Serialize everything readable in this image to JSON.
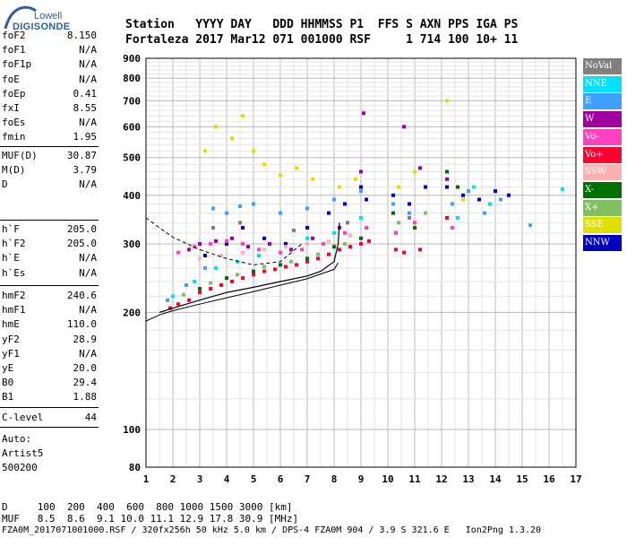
{
  "logo": {
    "top": "Lowell",
    "bottom": "DIGISONDE"
  },
  "header": {
    "line1": "Station   YYYY DAY   DDD HHMMSS P1  FFS S AXN PPS IGA PS",
    "line2": "Fortaleza 2017 Mar12 071 001000 RSF     1 714 100 10+ 11"
  },
  "params": {
    "group1": [
      {
        "name": "foF2",
        "value": "8.150"
      },
      {
        "name": "foF1",
        "value": "N/A"
      },
      {
        "name": "foF1p",
        "value": "N/A"
      },
      {
        "name": "foE",
        "value": "N/A"
      },
      {
        "name": "foEp",
        "value": "0.41"
      },
      {
        "name": "fxI",
        "value": "8.55"
      },
      {
        "name": "foEs",
        "value": "N/A"
      },
      {
        "name": "fmin",
        "value": "1.95"
      }
    ],
    "group2": [
      {
        "name": "MUF(D)",
        "value": "30.87"
      },
      {
        "name": "M(D)",
        "value": "3.79"
      },
      {
        "name": "D",
        "value": "N/A"
      }
    ],
    "group3": [
      {
        "name": "h`F",
        "value": "205.0"
      },
      {
        "name": "h`F2",
        "value": "205.0"
      },
      {
        "name": "h`E",
        "value": "N/A"
      },
      {
        "name": "h`Es",
        "value": "N/A"
      }
    ],
    "group4": [
      {
        "name": "hmF2",
        "value": "240.6"
      },
      {
        "name": "hmF1",
        "value": "N/A"
      },
      {
        "name": "hmE",
        "value": "110.0"
      },
      {
        "name": "yF2",
        "value": "28.9"
      },
      {
        "name": "yF1",
        "value": "N/A"
      },
      {
        "name": "yE",
        "value": "20.0"
      },
      {
        "name": "B0",
        "value": "29.4"
      },
      {
        "name": "B1",
        "value": "1.88"
      }
    ],
    "clevel": {
      "name": "C-level",
      "value": "44"
    }
  },
  "auto": {
    "line1": "Auto:",
    "line2": "Artist5",
    "line3": "500200"
  },
  "legend": [
    {
      "label": "NoVal",
      "color": "#808080"
    },
    {
      "label": "NNE",
      "color": "#00e0ff"
    },
    {
      "label": "E",
      "color": "#40a0ff"
    },
    {
      "label": "W",
      "color": "#a000a0"
    },
    {
      "label": "Vo-",
      "color": "#ff40c0"
    },
    {
      "label": "Vo+",
      "color": "#ff0030"
    },
    {
      "label": "SSW",
      "color": "#ffb0b0"
    },
    {
      "label": "X-",
      "color": "#007000"
    },
    {
      "label": "X+",
      "color": "#80c060"
    },
    {
      "label": "SSE",
      "color": "#e0e000"
    },
    {
      "label": "NNW",
      "color": "#0000c0"
    }
  ],
  "footer": {
    "d_row": "D     100  200  400  600  800 1000 1500 3000 [km]",
    "muf_row": "MUF   8.5  8.6  9.1 10.0 11.1 12.9 17.8 30.9 [MHz]",
    "info_row": "FZA0M_2017071001000.RSF / 320fx256h 50 kHz 5.0 km / DPS-4 FZA0M 904 / 3.9 S 321.6 E   Ion2Png 1.3.20"
  },
  "chart_data": {
    "type": "scatter",
    "title": "",
    "xlabel": "",
    "ylabel": "",
    "xlim": [
      1,
      17
    ],
    "ylim": [
      80,
      900
    ],
    "y_scale": "log",
    "x_ticks": [
      "1",
      "2",
      "3",
      "4",
      "5",
      "6",
      "7",
      "8",
      "9",
      "10",
      "11",
      "12",
      "13",
      "14",
      "15",
      "16",
      "17"
    ],
    "y_ticks": [
      "80",
      "100",
      "200",
      "300",
      "400",
      "500",
      "600",
      "700",
      "800",
      "900"
    ],
    "grid": true,
    "legend_position": "right",
    "series": [
      {
        "name": "Vo+",
        "color": "#ff0030",
        "points": [
          [
            1.9,
            205
          ],
          [
            2.2,
            210
          ],
          [
            2.6,
            215
          ],
          [
            3.0,
            225
          ],
          [
            3.4,
            230
          ],
          [
            3.8,
            235
          ],
          [
            4.2,
            240
          ],
          [
            4.6,
            245
          ],
          [
            5.0,
            250
          ],
          [
            5.4,
            255
          ],
          [
            5.8,
            258
          ],
          [
            6.2,
            262
          ],
          [
            6.6,
            265
          ],
          [
            7.0,
            270
          ],
          [
            7.4,
            275
          ],
          [
            7.8,
            282
          ],
          [
            8.2,
            290
          ],
          [
            8.6,
            295
          ],
          [
            9.0,
            300
          ],
          [
            9.3,
            305
          ],
          [
            10.3,
            290
          ],
          [
            10.6,
            285
          ],
          [
            11.2,
            290
          ],
          [
            12.2,
            350
          ]
        ]
      },
      {
        "name": "NNW",
        "color": "#0000c0",
        "points": [
          [
            3.2,
            280
          ],
          [
            4.0,
            300
          ],
          [
            4.6,
            330
          ],
          [
            5.4,
            310
          ],
          [
            6.2,
            300
          ],
          [
            7.0,
            330
          ],
          [
            7.8,
            360
          ],
          [
            8.4,
            380
          ],
          [
            9.0,
            420
          ],
          [
            9.2,
            390
          ],
          [
            10.2,
            400
          ],
          [
            10.8,
            380
          ],
          [
            11.4,
            420
          ],
          [
            12.2,
            420
          ],
          [
            12.8,
            400
          ],
          [
            13.4,
            390
          ],
          [
            14.0,
            410
          ],
          [
            14.5,
            400
          ]
        ]
      },
      {
        "name": "E",
        "color": "#40a0ff",
        "points": [
          [
            1.8,
            215
          ],
          [
            2.5,
            235
          ],
          [
            3.2,
            260
          ],
          [
            3.5,
            370
          ],
          [
            4.0,
            360
          ],
          [
            4.5,
            375
          ],
          [
            5.0,
            380
          ],
          [
            6.0,
            360
          ],
          [
            7.0,
            370
          ],
          [
            8.0,
            390
          ],
          [
            9.0,
            410
          ],
          [
            10.2,
            380
          ],
          [
            10.8,
            360
          ],
          [
            12.4,
            380
          ],
          [
            13.0,
            410
          ],
          [
            13.6,
            360
          ],
          [
            14.2,
            390
          ],
          [
            15.3,
            335
          ]
        ]
      },
      {
        "name": "NNE",
        "color": "#00e0ff",
        "points": [
          [
            2.0,
            220
          ],
          [
            2.8,
            240
          ],
          [
            3.6,
            260
          ],
          [
            4.4,
            270
          ],
          [
            5.2,
            280
          ],
          [
            6.0,
            285
          ],
          [
            7.0,
            310
          ],
          [
            8.0,
            320
          ],
          [
            9.0,
            350
          ],
          [
            10.3,
            320
          ],
          [
            12.6,
            350
          ],
          [
            13.2,
            420
          ],
          [
            13.8,
            380
          ],
          [
            16.5,
            415
          ]
        ]
      },
      {
        "name": "W",
        "color": "#a000a0",
        "points": [
          [
            2.6,
            290
          ],
          [
            3.0,
            300
          ],
          [
            3.6,
            305
          ],
          [
            4.2,
            310
          ],
          [
            4.8,
            295
          ],
          [
            5.6,
            300
          ],
          [
            6.4,
            290
          ],
          [
            7.2,
            310
          ],
          [
            8.2,
            330
          ],
          [
            9.0,
            460
          ],
          [
            9.1,
            650
          ],
          [
            10.6,
            600
          ],
          [
            11.2,
            470
          ],
          [
            12.2,
            440
          ]
        ]
      },
      {
        "name": "Vo-",
        "color": "#ff40c0",
        "points": [
          [
            2.2,
            285
          ],
          [
            2.8,
            295
          ],
          [
            3.4,
            300
          ],
          [
            4.0,
            305
          ],
          [
            4.6,
            300
          ],
          [
            5.2,
            290
          ],
          [
            6.0,
            285
          ],
          [
            6.8,
            290
          ],
          [
            7.6,
            300
          ],
          [
            8.4,
            320
          ],
          [
            9.2,
            330
          ],
          [
            10.3,
            320
          ],
          [
            11.0,
            340
          ],
          [
            12.4,
            330
          ]
        ]
      },
      {
        "name": "SSW",
        "color": "#ffb0b0",
        "points": [
          [
            3.0,
            275
          ],
          [
            3.8,
            280
          ],
          [
            4.6,
            285
          ],
          [
            5.4,
            290
          ],
          [
            6.2,
            295
          ],
          [
            7.0,
            300
          ],
          [
            7.8,
            305
          ],
          [
            8.6,
            315
          ]
        ]
      },
      {
        "name": "X-",
        "color": "#007000",
        "points": [
          [
            3.0,
            230
          ],
          [
            4.0,
            245
          ],
          [
            5.0,
            255
          ],
          [
            6.0,
            265
          ],
          [
            7.0,
            275
          ],
          [
            8.0,
            295
          ],
          [
            9.0,
            310
          ],
          [
            10.2,
            360
          ],
          [
            11.0,
            330
          ],
          [
            12.2,
            460
          ],
          [
            12.6,
            420
          ]
        ]
      },
      {
        "name": "X+",
        "color": "#80c060",
        "points": [
          [
            2.4,
            222
          ],
          [
            3.4,
            238
          ],
          [
            4.4,
            250
          ],
          [
            5.4,
            262
          ],
          [
            6.4,
            270
          ],
          [
            7.4,
            282
          ],
          [
            8.4,
            300
          ],
          [
            10.4,
            340
          ],
          [
            11.4,
            360
          ]
        ]
      },
      {
        "name": "SSE",
        "color": "#e0e000",
        "points": [
          [
            3.2,
            520
          ],
          [
            3.6,
            600
          ],
          [
            4.2,
            560
          ],
          [
            4.6,
            640
          ],
          [
            5.0,
            520
          ],
          [
            5.4,
            480
          ],
          [
            6.0,
            450
          ],
          [
            6.6,
            470
          ],
          [
            7.2,
            440
          ],
          [
            8.2,
            420
          ],
          [
            8.8,
            440
          ],
          [
            10.4,
            420
          ],
          [
            11.0,
            460
          ],
          [
            12.2,
            700
          ],
          [
            12.8,
            390
          ]
        ]
      },
      {
        "name": "NoVal",
        "color": "#808080",
        "points": [
          [
            3.5,
            330
          ],
          [
            4.5,
            340
          ],
          [
            6.5,
            325
          ],
          [
            8.5,
            340
          ],
          [
            10.8,
            350
          ]
        ]
      }
    ],
    "traces": {
      "profile": [
        [
          1.5,
          200
        ],
        [
          2,
          205
        ],
        [
          3,
          215
        ],
        [
          4,
          225
        ],
        [
          5,
          232
        ],
        [
          6,
          240
        ],
        [
          7,
          248
        ],
        [
          7.5,
          255
        ],
        [
          8,
          270
        ],
        [
          8.15,
          300
        ],
        [
          8.2,
          340
        ]
      ],
      "dashed_upper": [
        [
          1.0,
          350
        ],
        [
          1.5,
          330
        ],
        [
          2,
          312
        ],
        [
          3,
          290
        ],
        [
          4,
          275
        ],
        [
          5,
          265
        ],
        [
          6,
          270
        ],
        [
          6.8,
          300
        ]
      ],
      "solid_lower": [
        [
          1.0,
          190
        ],
        [
          1.5,
          197
        ],
        [
          2,
          202
        ],
        [
          3,
          210
        ],
        [
          4,
          218
        ],
        [
          5,
          226
        ],
        [
          6,
          235
        ],
        [
          7,
          244
        ],
        [
          8,
          258
        ],
        [
          8.15,
          268
        ]
      ]
    }
  }
}
